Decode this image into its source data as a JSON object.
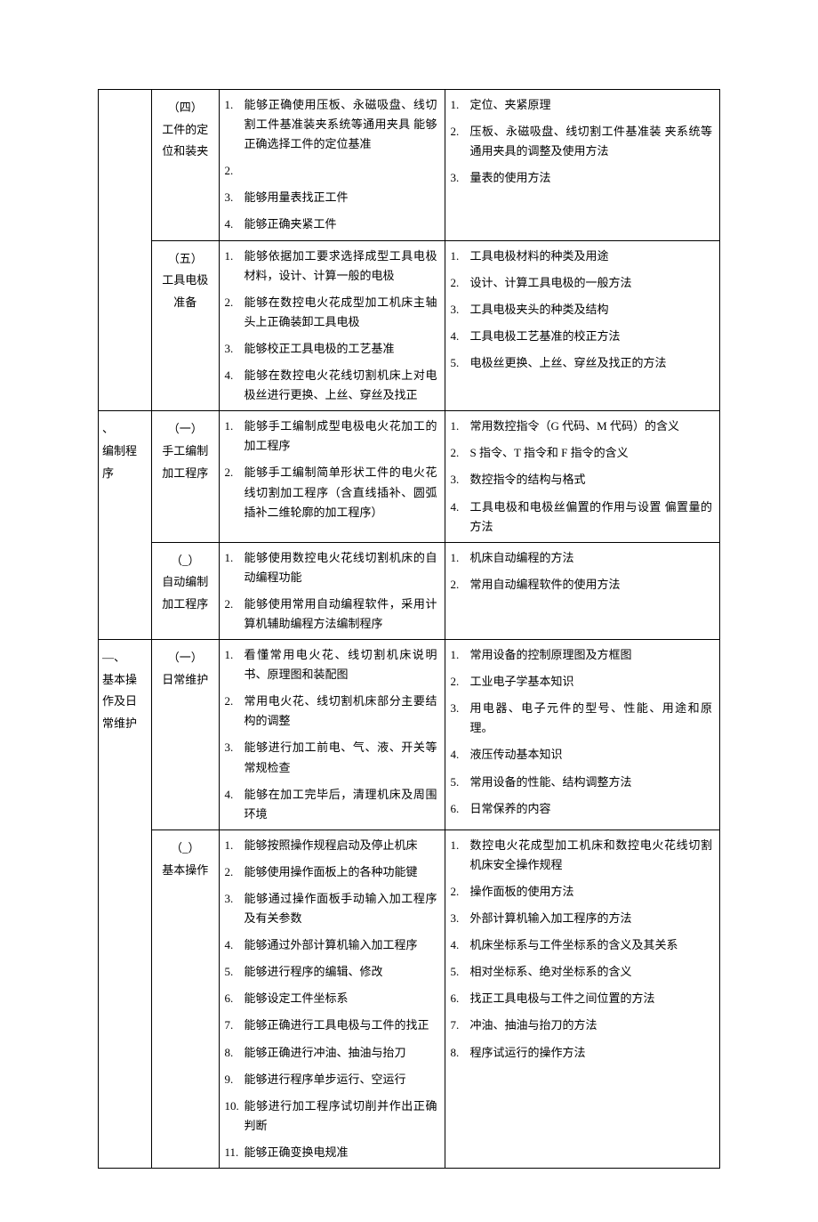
{
  "rows": [
    {
      "cat": "",
      "subs": [
        {
          "label": "（四）\n工件的定位和装夹",
          "left": [
            {
              "n": "1.",
              "t": "能够正确使用压板、永磁吸盘、线切 割工件基准装夹系统等通用夹具 能够正确选择工件的定位基准"
            },
            {
              "n": "2.",
              "t": ""
            },
            {
              "n": "3.",
              "t": "能够用量表找正工件"
            },
            {
              "n": "4.",
              "t": "能够正确夹紧工件"
            }
          ],
          "right": [
            {
              "n": "1.",
              "t": "定位、夹紧原理"
            },
            {
              "n": "2.",
              "t": "压板、永磁吸盘、线切割工件基准装 夹系统等通用夹具的调整及使用方法"
            },
            {
              "n": "3.",
              "t": "量表的使用方法"
            }
          ]
        },
        {
          "label": "（五）\n工具电极准备",
          "left": [
            {
              "n": "1.",
              "t": "能够依据加工要求选择成型工具电极材料，设计、计算一般的电极"
            },
            {
              "n": "2.",
              "t": "能够在数控电火花成型加工机床主轴头上正确装卸工具电极"
            },
            {
              "n": "3.",
              "t": "能够校正工具电极的工艺基准"
            },
            {
              "n": "4.",
              "t": "能够在数控电火花线切割机床上对电 极丝进行更换、上丝、穿丝及找正"
            }
          ],
          "right": [
            {
              "n": "1.",
              "t": "工具电极材料的种类及用途"
            },
            {
              "n": "2.",
              "t": "设计、计算工具电极的一般方法"
            },
            {
              "n": "3.",
              "t": "工具电极夹头的种类及结构"
            },
            {
              "n": "4.",
              "t": "工具电极工艺基准的校正方法"
            },
            {
              "n": "5.",
              "t": "电极丝更换、上丝、穿丝及找正的方法"
            }
          ]
        }
      ]
    },
    {
      "cat": "、\n编制程序",
      "subs": [
        {
          "label": "（一）\n手工编制加工程序",
          "left": [
            {
              "n": "1.",
              "t": "能够手工编制成型电极电火花加工的加工程序"
            },
            {
              "n": "2.",
              "t": "能够手工编制简单形状工件的电火花线切割加工程序（含直线插补、圆弧插补二维轮廓的加工程序）"
            }
          ],
          "right": [
            {
              "n": "1.",
              "t": "常用数控指令（G 代码、M 代码）的含义"
            },
            {
              "n": "2.",
              "t": "S 指令、T 指令和 F 指令的含义"
            },
            {
              "n": "3.",
              "t": "数控指令的结构与格式"
            },
            {
              "n": "4.",
              "t": "工具电极和电极丝偏置的作用与设置 偏置量的方法"
            }
          ]
        },
        {
          "label": "（_）\n自动编制加工程序",
          "left": [
            {
              "n": "1.",
              "t": "能够使用数控电火花线切割机床的自动编程功能"
            },
            {
              "n": "2.",
              "t": "能够使用常用自动编程软件，采用计 算机辅助编程方法编制程序"
            }
          ],
          "right": [
            {
              "n": "1.",
              "t": "机床自动编程的方法"
            },
            {
              "n": "2.",
              "t": "常用自动编程软件的使用方法"
            }
          ]
        }
      ]
    },
    {
      "cat": "—、\n基本操作及日常维护",
      "subs": [
        {
          "label": "（一）\n日常维护",
          "left": [
            {
              "n": "1.",
              "t": "看懂常用电火花、线切割机床说明书、原理图和装配图"
            },
            {
              "n": "2.",
              "t": "常用电火花、线切割机床部分主要结构的调整"
            },
            {
              "n": "3.",
              "t": "能够进行加工前电、气、液、开关等常规检查"
            },
            {
              "n": "4.",
              "t": "能够在加工完毕后，清理机床及周围 环境"
            }
          ],
          "right": [
            {
              "n": "1.",
              "t": "常用设备的控制原理图及方框图"
            },
            {
              "n": "2.",
              "t": "工业电子学基本知识"
            },
            {
              "n": "3.",
              "t": "用电器、电子元件的型号、性能、用途和原理。"
            },
            {
              "n": "4.",
              "t": "液压传动基本知识"
            },
            {
              "n": "5.",
              "t": "常用设备的性能、结构调整方法"
            },
            {
              "n": "6.",
              "t": "日常保养的内容"
            }
          ]
        },
        {
          "label": "（_）\n基本操作",
          "left": [
            {
              "n": "1.",
              "t": "能够按照操作规程启动及停止机床"
            },
            {
              "n": "2.",
              "t": "能够使用操作面板上的各种功能键"
            },
            {
              "n": "3.",
              "t": "能够通过操作面板手动输入加工程序及有关参数"
            },
            {
              "n": "4.",
              "t": "能够通过外部计算机输入加工程序"
            },
            {
              "n": "5.",
              "t": "能够进行程序的编辑、修改"
            },
            {
              "n": "6.",
              "t": "能够设定工件坐标系"
            },
            {
              "n": "7.",
              "t": "能够正确进行工具电极与工件的找正"
            },
            {
              "n": "8.",
              "t": "能够正确进行冲油、抽油与抬刀"
            },
            {
              "n": "9.",
              "t": "能够进行程序单步运行、空运行"
            },
            {
              "n": "10.",
              "t": "能够进行加工程序试切削并作出正确 判断"
            },
            {
              "n": "11.",
              "t": "能够正确变换电规准"
            }
          ],
          "right": [
            {
              "n": "1.",
              "t": "数控电火花成型加工机床和数控电火花线切割机床安全操作规程"
            },
            {
              "n": "2.",
              "t": "操作面板的使用方法"
            },
            {
              "n": "3.",
              "t": "外部计算机输入加工程序的方法"
            },
            {
              "n": "4.",
              "t": "机床坐标系与工件坐标系的含义及其关系"
            },
            {
              "n": "5.",
              "t": "相对坐标系、绝对坐标系的含义"
            },
            {
              "n": "6.",
              "t": "找正工具电极与工件之间位置的方法"
            },
            {
              "n": "7.",
              "t": "冲油、抽油与抬刀的方法"
            },
            {
              "n": "8.",
              "t": "程序试运行的操作方法"
            }
          ]
        }
      ]
    }
  ]
}
